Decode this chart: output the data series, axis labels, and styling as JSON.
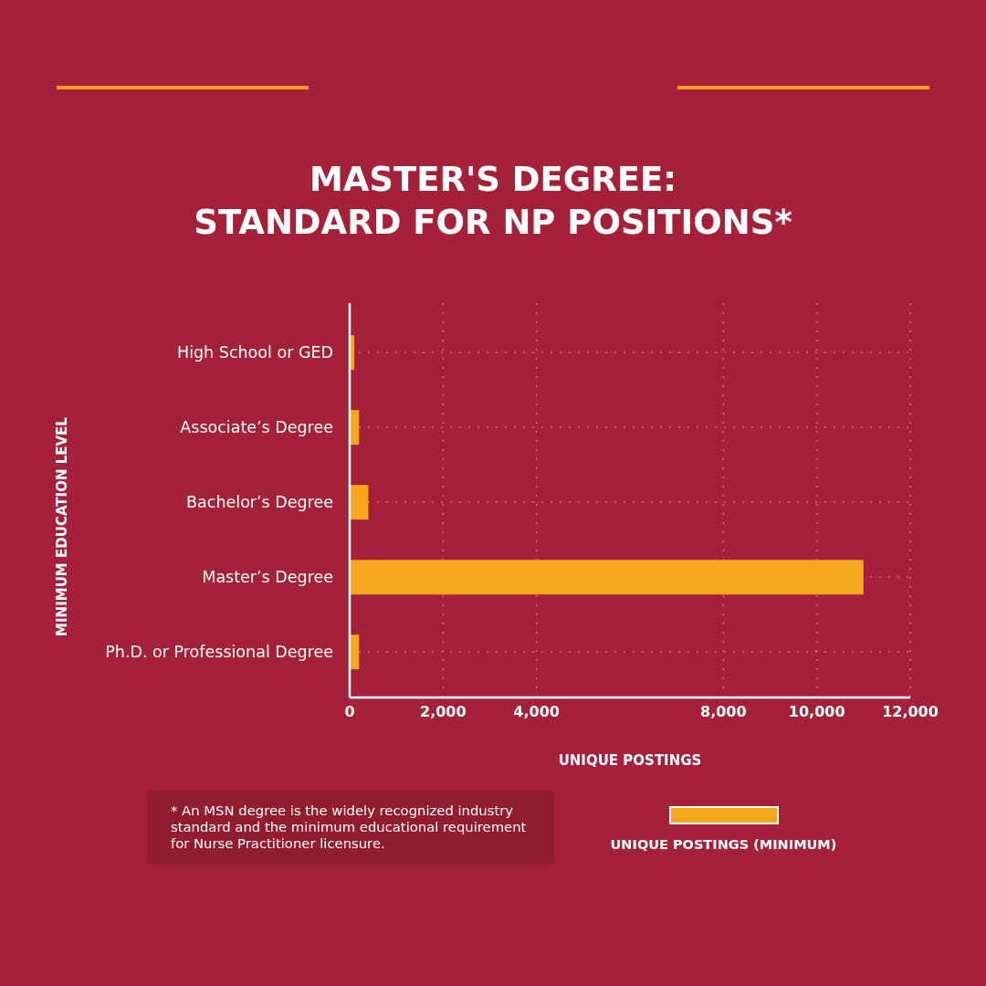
{
  "chart_data": {
    "type": "bar",
    "orientation": "horizontal",
    "title": "MASTER'S DEGREE:\nSTANDARD FOR NP POSITIONS*",
    "xlabel": "UNIQUE POSTINGS",
    "ylabel": "MINIMUM EDUCATION LEVEL",
    "categories": [
      "High School or GED",
      "Associate’s Degree",
      "Bachelor’s Degree",
      "Master’s Degree",
      "Ph.D. or Professional Degree"
    ],
    "series": [
      {
        "name": "UNIQUE POSTINGS (MINIMUM)",
        "color": "#f4a61c",
        "values": [
          100,
          200,
          400,
          11000,
          200
        ]
      }
    ],
    "xlim": [
      0,
      12000
    ],
    "xticks": [
      0,
      {
        "value": 2000,
        "label": "2,000"
      },
      {
        "value": 4000,
        "label": "4,000"
      },
      {
        "value": 8000,
        "label": "8,000"
      },
      {
        "value": 10000,
        "label": "10,000"
      },
      {
        "value": 12000,
        "label": "12,000"
      }
    ],
    "grid": true,
    "legend": "bottom right",
    "annotations": [
      "* An MSN degree is the widely recognized industry standard and the minimum educational requirement for Nurse Practitioner licensure."
    ]
  }
}
